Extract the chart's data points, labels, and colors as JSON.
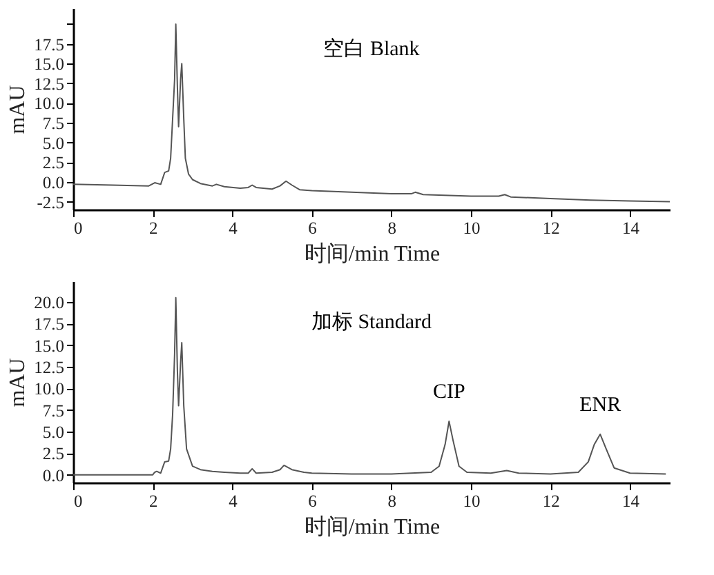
{
  "chart_data": [
    {
      "type": "line",
      "xlabel": "时间/min Time",
      "ylabel": "mAU",
      "annotations": [
        "空白 Blank"
      ],
      "x": [
        0,
        1,
        1.9,
        2.05,
        2.2,
        2.3,
        2.4,
        2.45,
        2.5,
        2.55,
        2.58,
        2.62,
        2.65,
        2.7,
        2.73,
        2.78,
        2.82,
        2.9,
        3.0,
        3.2,
        3.5,
        3.6,
        3.8,
        4.2,
        4.4,
        4.5,
        4.6,
        5.0,
        5.2,
        5.35,
        5.5,
        5.7,
        6,
        7,
        8,
        8.5,
        8.6,
        8.8,
        10,
        10.7,
        10.85,
        11,
        12,
        13,
        14,
        15
      ],
      "series": [
        {
          "color": "#555555",
          "values": [
            -0.3,
            -0.4,
            -0.5,
            -0.1,
            -0.3,
            1.2,
            1.4,
            3,
            8,
            13,
            20,
            12,
            7,
            13,
            15,
            8,
            3,
            1,
            0.3,
            -0.2,
            -0.5,
            -0.3,
            -0.6,
            -0.8,
            -0.7,
            -0.4,
            -0.7,
            -0.9,
            -0.5,
            0.1,
            -0.4,
            -1.0,
            -1.1,
            -1.3,
            -1.5,
            -1.5,
            -1.3,
            -1.6,
            -1.8,
            -1.8,
            -1.6,
            -1.9,
            -2.1,
            -2.3,
            -2.4,
            -2.5
          ]
        }
      ],
      "xlim": [
        0,
        15
      ],
      "xticks": [
        0,
        2,
        4,
        6,
        8,
        10,
        12,
        14
      ],
      "ylim": [
        -3.5,
        22
      ],
      "yticks": [
        {
          "value": -2.5,
          "label": "-2.5"
        },
        {
          "value": 0,
          "label": "0.0"
        },
        {
          "value": 2.5,
          "label": "2.5"
        },
        {
          "value": 5,
          "label": "5.0"
        },
        {
          "value": 7.5,
          "label": "7.5"
        },
        {
          "value": 10,
          "label": "10.0"
        },
        {
          "value": 12.5,
          "label": "12.5"
        },
        {
          "value": 15,
          "label": "15.0"
        },
        {
          "value": 17.5,
          "label": "17.5"
        },
        {
          "value": 20,
          "label": null
        }
      ],
      "grid": false
    },
    {
      "type": "line",
      "xlabel": "时间/min Time",
      "ylabel": "mAU",
      "annotations": [
        "加标 Standard",
        {
          "text": "CIP",
          "x": 9.45,
          "y": 6.2
        },
        {
          "text": "ENR",
          "x": 13.25,
          "y": 4.7
        }
      ],
      "x": [
        0,
        2.0,
        2.05,
        2.1,
        2.2,
        2.3,
        2.4,
        2.45,
        2.5,
        2.55,
        2.58,
        2.62,
        2.65,
        2.7,
        2.73,
        2.78,
        2.85,
        3,
        3.2,
        3.5,
        3.8,
        4.2,
        4.4,
        4.5,
        4.6,
        5.0,
        5.2,
        5.3,
        5.5,
        5.8,
        6,
        7,
        8,
        8.5,
        9.0,
        9.2,
        9.35,
        9.45,
        9.55,
        9.7,
        9.9,
        10.5,
        10.9,
        11.2,
        12,
        12.7,
        12.95,
        13.1,
        13.25,
        13.4,
        13.6,
        14,
        14.9
      ],
      "series": [
        {
          "color": "#555555",
          "values": [
            0,
            0,
            0.3,
            0.4,
            0.2,
            1.5,
            1.6,
            3,
            7,
            14,
            20.5,
            12,
            8,
            13,
            15.3,
            8,
            3,
            1,
            0.6,
            0.4,
            0.3,
            0.2,
            0.2,
            0.7,
            0.2,
            0.3,
            0.6,
            1.1,
            0.6,
            0.3,
            0.2,
            0.1,
            0.1,
            0.2,
            0.3,
            1.0,
            3.5,
            6.2,
            4,
            1,
            0.3,
            0.2,
            0.5,
            0.2,
            0.1,
            0.3,
            1.5,
            3.5,
            4.7,
            3,
            0.8,
            0.2,
            0.1
          ]
        }
      ],
      "xlim": [
        0,
        15
      ],
      "xticks": [
        0,
        2,
        4,
        6,
        8,
        10,
        12,
        14
      ],
      "ylim": [
        -0.9,
        22.4
      ],
      "yticks": [
        {
          "value": 0,
          "label": "0.0"
        },
        {
          "value": 2.5,
          "label": "2.5"
        },
        {
          "value": 5,
          "label": "5.0"
        },
        {
          "value": 7.5,
          "label": "7.5"
        },
        {
          "value": 10,
          "label": "10.0"
        },
        {
          "value": 12.5,
          "label": "12.5"
        },
        {
          "value": 15,
          "label": "15.0"
        },
        {
          "value": 17.5,
          "label": "17.5"
        },
        {
          "value": 20,
          "label": "20.0"
        }
      ],
      "grid": false
    }
  ]
}
